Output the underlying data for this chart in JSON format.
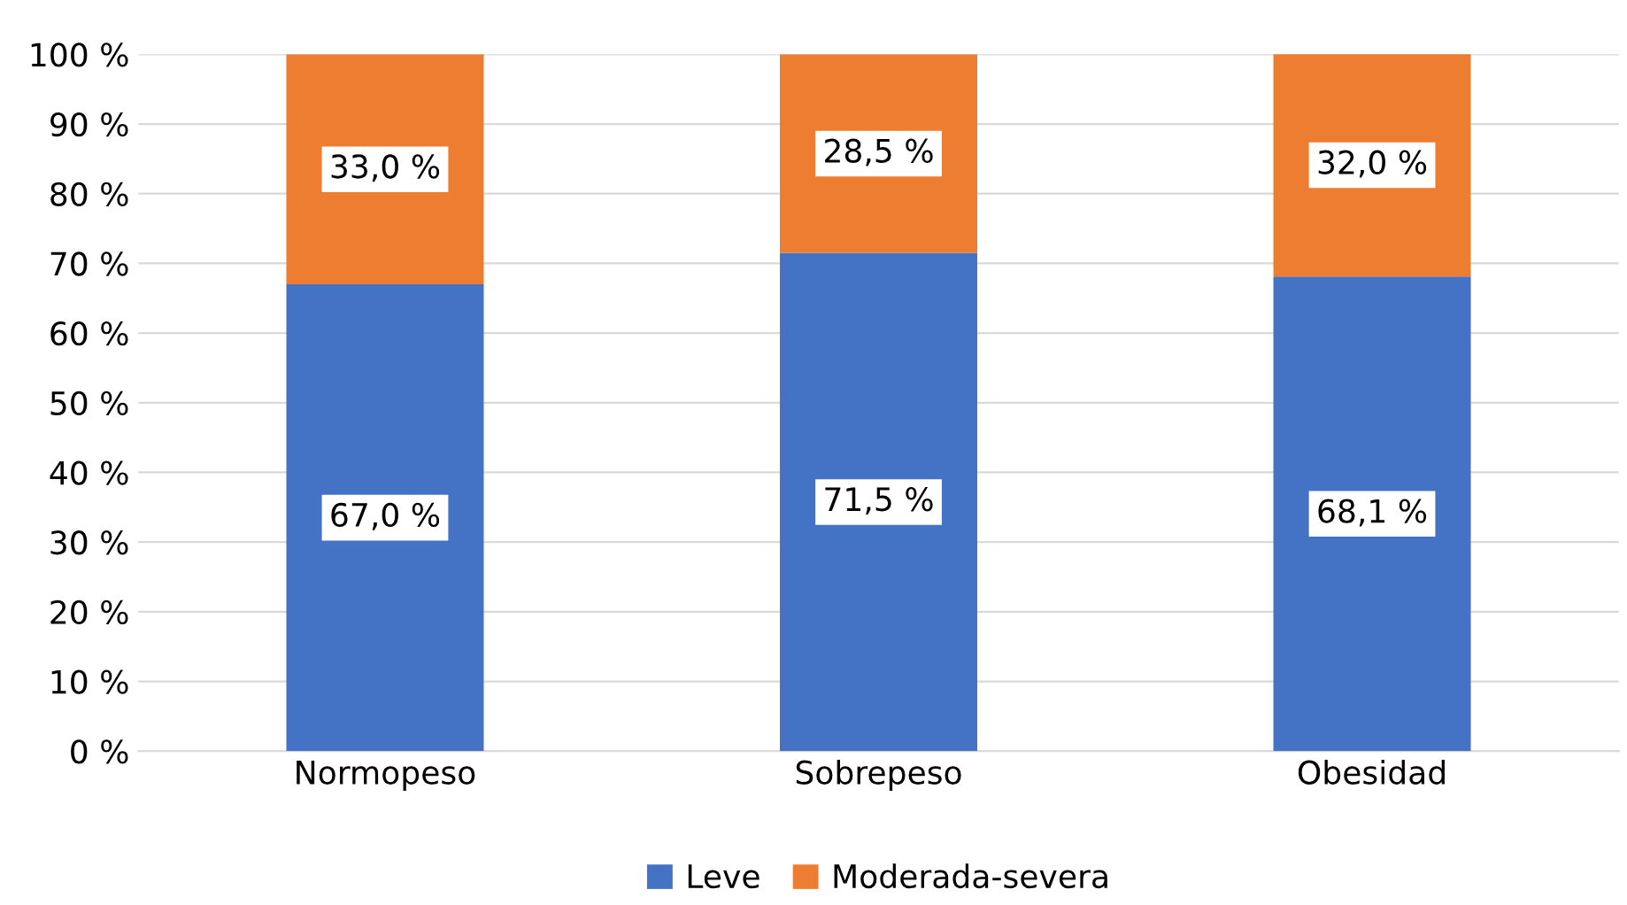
{
  "chart_data": {
    "type": "bar",
    "stacked": true,
    "categories": [
      "Normopeso",
      "Sobrepeso",
      "Obesidad"
    ],
    "series": [
      {
        "name": "Leve",
        "color": "#4472c4",
        "values": [
          67.0,
          71.5,
          68.1
        ],
        "value_labels": [
          "67,0 %",
          "71,5 %",
          "68,1 %"
        ]
      },
      {
        "name": "Moderada-severa",
        "color": "#ed7d31",
        "values": [
          33.0,
          28.5,
          32.0
        ],
        "value_labels": [
          "33,0 %",
          "28,5 %",
          "32,0 %"
        ]
      }
    ],
    "ylim": [
      0,
      100
    ],
    "yticks": [
      {
        "value": 0,
        "label": "0 %"
      },
      {
        "value": 10,
        "label": "10 %"
      },
      {
        "value": 20,
        "label": "20 %"
      },
      {
        "value": 30,
        "label": "30 %"
      },
      {
        "value": 40,
        "label": "40 %"
      },
      {
        "value": 50,
        "label": "50 %"
      },
      {
        "value": 60,
        "label": "60 %"
      },
      {
        "value": 70,
        "label": "70 %"
      },
      {
        "value": 80,
        "label": "80 %"
      },
      {
        "value": 90,
        "label": "90 %"
      },
      {
        "value": 100,
        "label": "100 %"
      }
    ],
    "grid": "y",
    "legend": "bottom"
  }
}
